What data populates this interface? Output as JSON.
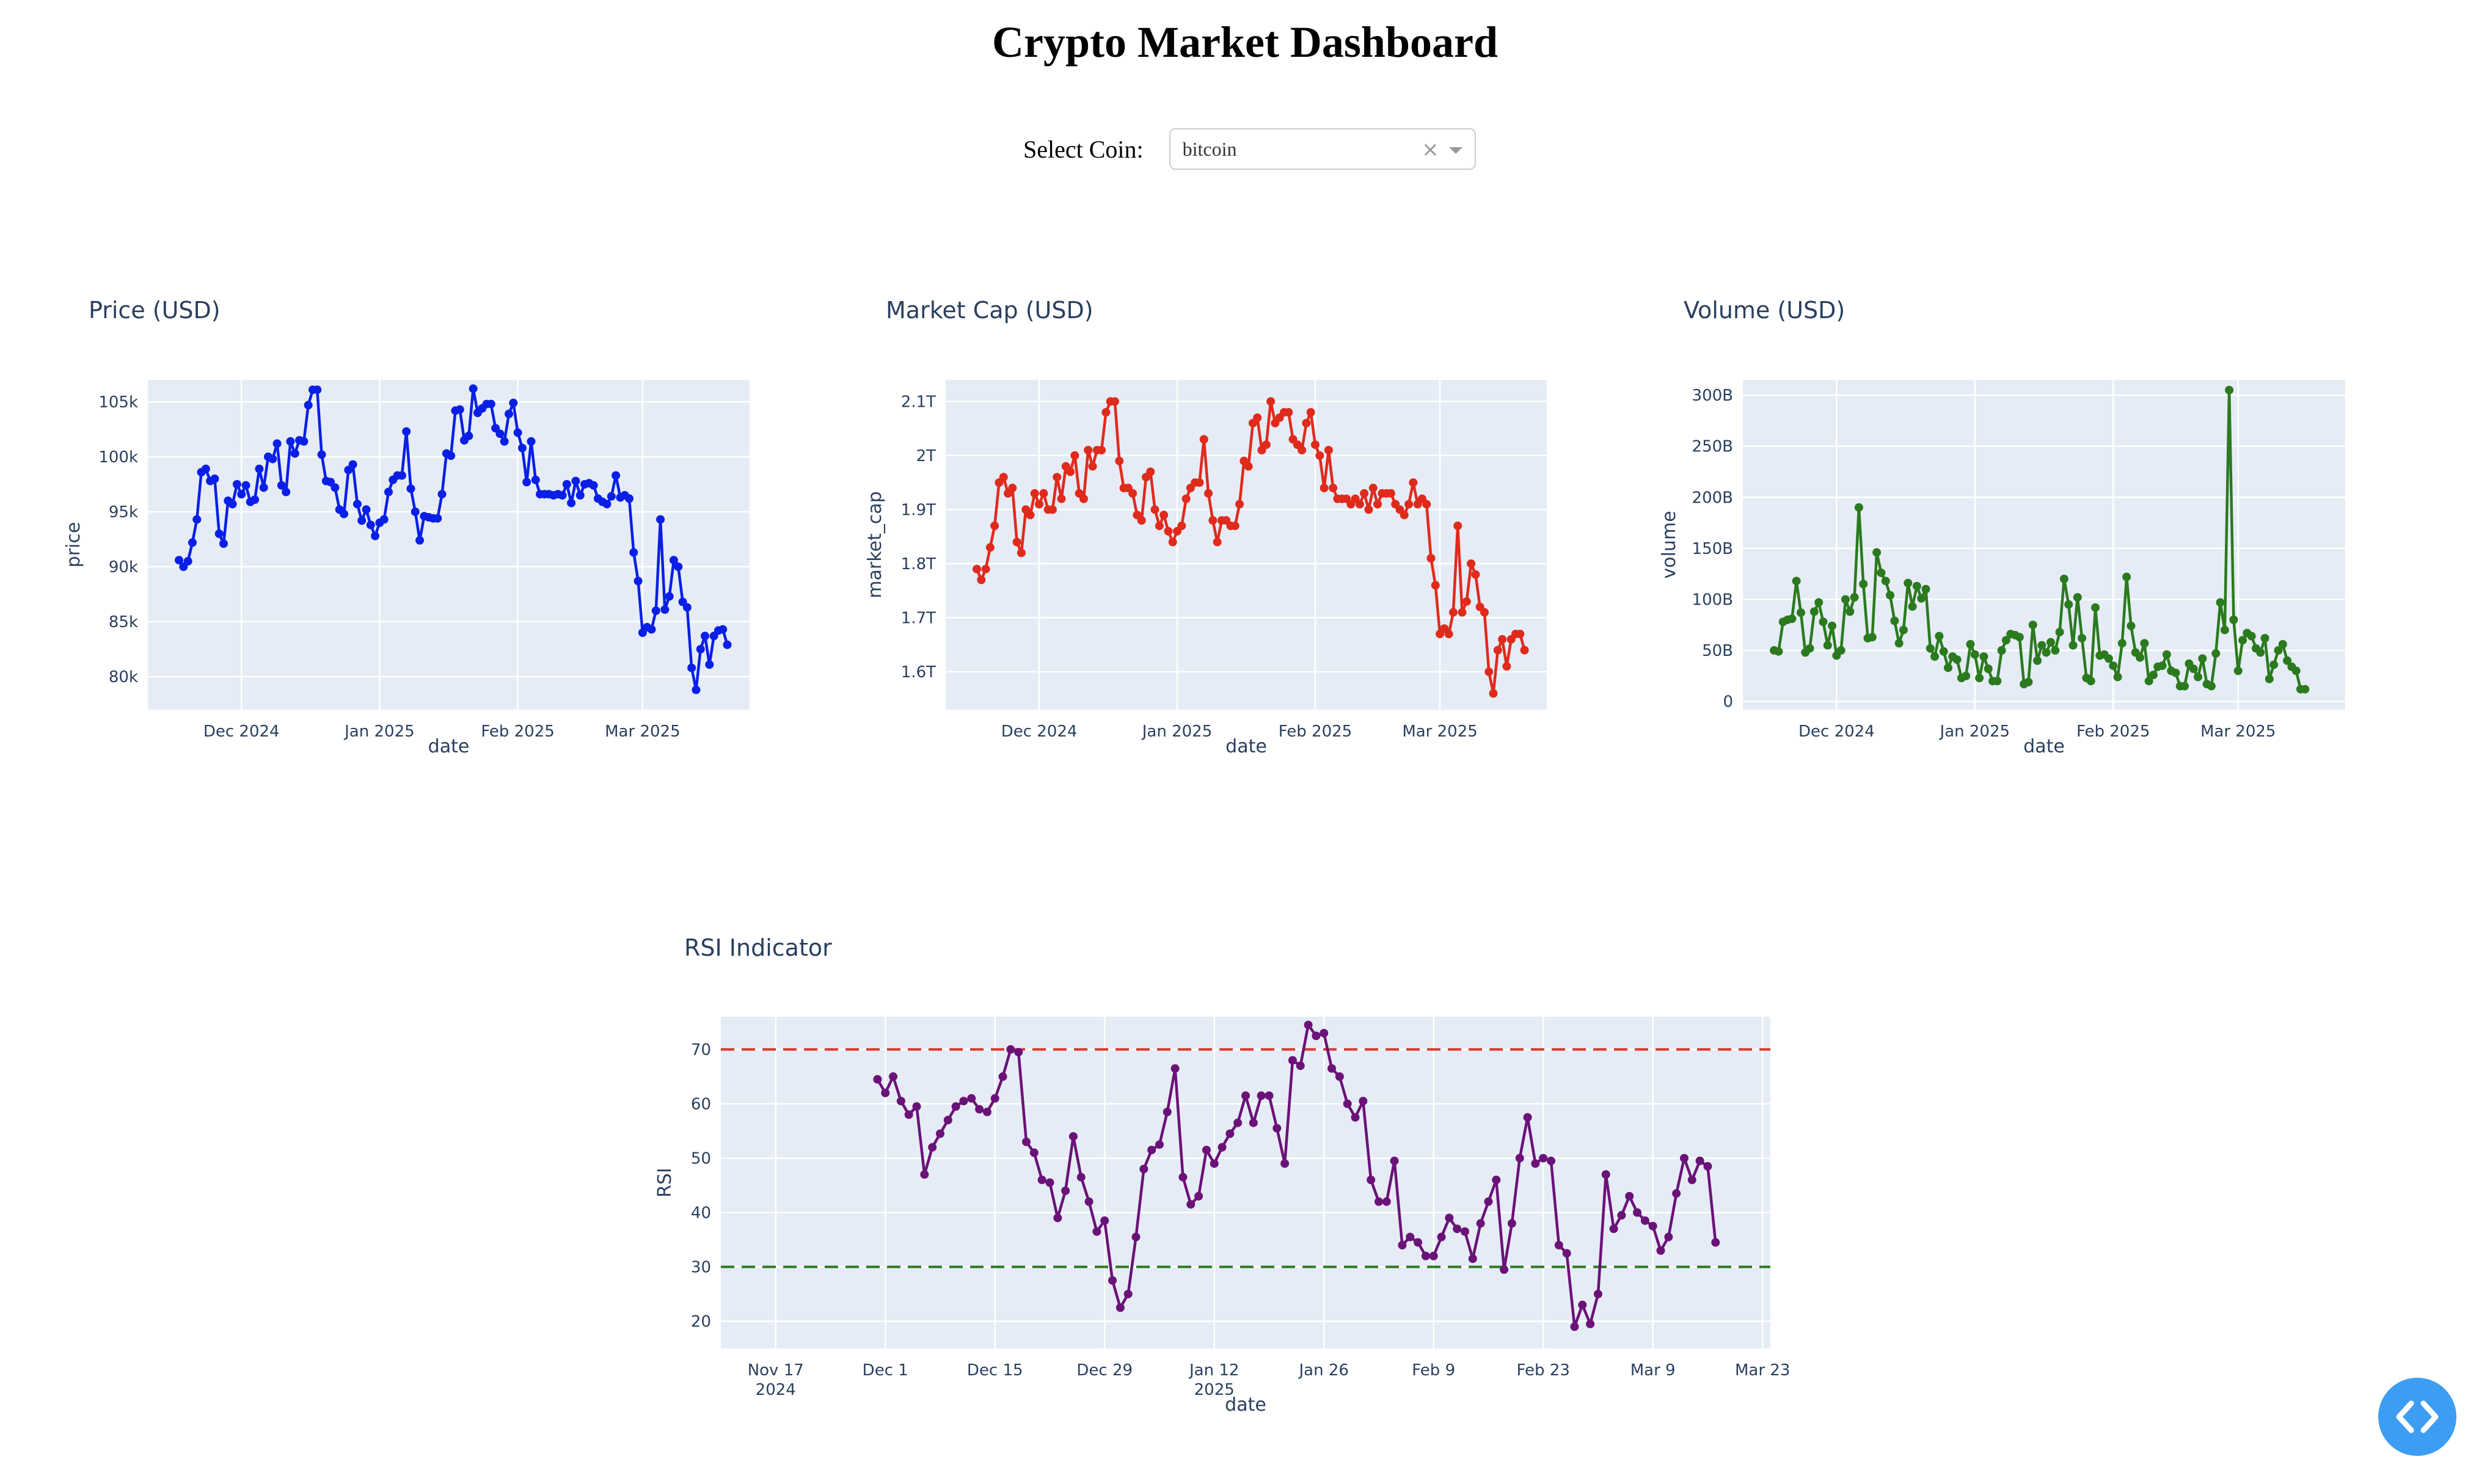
{
  "header": {
    "title": "Crypto Market Dashboard"
  },
  "selector": {
    "label": "Select Coin:",
    "value": "bitcoin",
    "clear_symbol": "×"
  },
  "icons": {
    "clear": "close-icon",
    "dropdown": "chevron-down-icon",
    "fab": "code-brackets-icon"
  },
  "chart_data": [
    {
      "id": "price",
      "type": "line",
      "title": "Price (USD)",
      "xlabel": "date",
      "ylabel": "price",
      "color": "#0a1fe6",
      "xlim": [
        "2024-11-10",
        "2025-03-25"
      ],
      "ylim": [
        77000,
        107000
      ],
      "grid": true,
      "x_ticks": [
        {
          "date": "2024-12-01",
          "label": "Dec 2024"
        },
        {
          "date": "2025-01-01",
          "label": "Jan 2025"
        },
        {
          "date": "2025-02-01",
          "label": "Feb 2025"
        },
        {
          "date": "2025-03-01",
          "label": "Mar 2025"
        }
      ],
      "y_ticks": [
        {
          "value": 80000,
          "label": "80k"
        },
        {
          "value": 85000,
          "label": "85k"
        },
        {
          "value": 90000,
          "label": "90k"
        },
        {
          "value": 95000,
          "label": "95k"
        },
        {
          "value": 100000,
          "label": "100k"
        },
        {
          "value": 105000,
          "label": "105k"
        }
      ],
      "start_date": "2024-11-17",
      "values": [
        90600,
        90000,
        90500,
        92200,
        94300,
        98600,
        98900,
        97800,
        98000,
        93000,
        92100,
        96000,
        95700,
        97500,
        96600,
        97400,
        95900,
        96100,
        98900,
        97200,
        100000,
        99800,
        101200,
        97400,
        96800,
        101400,
        100300,
        101500,
        101400,
        104700,
        106100,
        106100,
        100200,
        97800,
        97700,
        97200,
        95200,
        94800,
        98800,
        99300,
        95700,
        94200,
        95200,
        93800,
        92800,
        94000,
        94300,
        96800,
        97900,
        98300,
        98300,
        102300,
        97100,
        95000,
        92400,
        94600,
        94500,
        94400,
        94400,
        96600,
        100300,
        100100,
        104200,
        104300,
        101500,
        101900,
        106200,
        104000,
        104400,
        104800,
        104800,
        102600,
        102100,
        101400,
        103900,
        104900,
        102200,
        100800,
        97700,
        101400,
        97900,
        96600,
        96600,
        96600,
        96500,
        96600,
        96500,
        97500,
        95800,
        97800,
        96500,
        97500,
        97600,
        97400,
        96200,
        95900,
        95700,
        96400,
        98300,
        96300,
        96500,
        96200,
        91300,
        88700,
        84000,
        84500,
        84300,
        86000,
        94300,
        86100,
        87300,
        90600,
        90000,
        86800,
        86300,
        80800,
        78800,
        82500,
        83700,
        81100,
        83700,
        84200,
        84300,
        82900
      ]
    },
    {
      "id": "market_cap",
      "type": "line",
      "title": "Market Cap (USD)",
      "xlabel": "date",
      "ylabel": "market_cap",
      "color": "#e02a1c",
      "xlim": [
        "2024-11-10",
        "2025-03-25"
      ],
      "ylim": [
        1530000000000.0,
        2140000000000.0
      ],
      "grid": true,
      "x_ticks": [
        {
          "date": "2024-12-01",
          "label": "Dec 2024"
        },
        {
          "date": "2025-01-01",
          "label": "Jan 2025"
        },
        {
          "date": "2025-02-01",
          "label": "Feb 2025"
        },
        {
          "date": "2025-03-01",
          "label": "Mar 2025"
        }
      ],
      "y_ticks": [
        {
          "value": 1600000000000.0,
          "label": "1.6T"
        },
        {
          "value": 1700000000000.0,
          "label": "1.7T"
        },
        {
          "value": 1800000000000.0,
          "label": "1.8T"
        },
        {
          "value": 1900000000000.0,
          "label": "1.9T"
        },
        {
          "value": 2000000000000.0,
          "label": "2T"
        },
        {
          "value": 2100000000000.0,
          "label": "2.1T"
        }
      ],
      "start_date": "2024-11-17",
      "values": [
        1790000000000.0,
        1770000000000.0,
        1790000000000.0,
        1830000000000.0,
        1870000000000.0,
        1950000000000.0,
        1960000000000.0,
        1930000000000.0,
        1940000000000.0,
        1840000000000.0,
        1820000000000.0,
        1900000000000.0,
        1890000000000.0,
        1930000000000.0,
        1910000000000.0,
        1930000000000.0,
        1900000000000.0,
        1900000000000.0,
        1960000000000.0,
        1920000000000.0,
        1980000000000.0,
        1970000000000.0,
        2000000000000.0,
        1930000000000.0,
        1920000000000.0,
        2010000000000.0,
        1980000000000.0,
        2010000000000.0,
        2010000000000.0,
        2080000000000.0,
        2100000000000.0,
        2100000000000.0,
        1990000000000.0,
        1940000000000.0,
        1940000000000.0,
        1930000000000.0,
        1890000000000.0,
        1880000000000.0,
        1960000000000.0,
        1970000000000.0,
        1900000000000.0,
        1870000000000.0,
        1890000000000.0,
        1860000000000.0,
        1840000000000.0,
        1860000000000.0,
        1870000000000.0,
        1920000000000.0,
        1940000000000.0,
        1950000000000.0,
        1950000000000.0,
        2030000000000.0,
        1930000000000.0,
        1880000000000.0,
        1840000000000.0,
        1880000000000.0,
        1880000000000.0,
        1870000000000.0,
        1870000000000.0,
        1910000000000.0,
        1990000000000.0,
        1980000000000.0,
        2060000000000.0,
        2070000000000.0,
        2010000000000.0,
        2020000000000.0,
        2100000000000.0,
        2060000000000.0,
        2070000000000.0,
        2080000000000.0,
        2080000000000.0,
        2030000000000.0,
        2020000000000.0,
        2010000000000.0,
        2060000000000.0,
        2080000000000.0,
        2020000000000.0,
        2000000000000.0,
        1940000000000.0,
        2010000000000.0,
        1940000000000.0,
        1920000000000.0,
        1920000000000.0,
        1920000000000.0,
        1910000000000.0,
        1920000000000.0,
        1910000000000.0,
        1930000000000.0,
        1900000000000.0,
        1940000000000.0,
        1910000000000.0,
        1930000000000.0,
        1930000000000.0,
        1930000000000.0,
        1910000000000.0,
        1900000000000.0,
        1890000000000.0,
        1910000000000.0,
        1950000000000.0,
        1910000000000.0,
        1920000000000.0,
        1910000000000.0,
        1810000000000.0,
        1760000000000.0,
        1670000000000.0,
        1680000000000.0,
        1670000000000.0,
        1710000000000.0,
        1870000000000.0,
        1710000000000.0,
        1730000000000.0,
        1800000000000.0,
        1780000000000.0,
        1720000000000.0,
        1710000000000.0,
        1600000000000.0,
        1560000000000.0,
        1640000000000.0,
        1660000000000.0,
        1610000000000.0,
        1660000000000.0,
        1670000000000.0,
        1670000000000.0,
        1640000000000.0
      ]
    },
    {
      "id": "volume",
      "type": "line",
      "title": "Volume (USD)",
      "xlabel": "date",
      "ylabel": "volume",
      "color": "#2b7a1e",
      "xlim": [
        "2024-11-10",
        "2025-03-25"
      ],
      "ylim": [
        -8000000000.0,
        315000000000.0
      ],
      "grid": true,
      "x_ticks": [
        {
          "date": "2024-12-01",
          "label": "Dec 2024"
        },
        {
          "date": "2025-01-01",
          "label": "Jan 2025"
        },
        {
          "date": "2025-02-01",
          "label": "Feb 2025"
        },
        {
          "date": "2025-03-01",
          "label": "Mar 2025"
        }
      ],
      "y_ticks": [
        {
          "value": 0,
          "label": "0"
        },
        {
          "value": 50000000000.0,
          "label": "50B"
        },
        {
          "value": 100000000000.0,
          "label": "100B"
        },
        {
          "value": 150000000000.0,
          "label": "150B"
        },
        {
          "value": 200000000000.0,
          "label": "200B"
        },
        {
          "value": 250000000000.0,
          "label": "250B"
        },
        {
          "value": 300000000000.0,
          "label": "300B"
        }
      ],
      "start_date": "2024-11-17",
      "values": [
        50000000000.0,
        49000000000.0,
        78000000000.0,
        80000000000.0,
        81000000000.0,
        118000000000.0,
        87000000000.0,
        48000000000.0,
        52000000000.0,
        88000000000.0,
        97000000000.0,
        78000000000.0,
        55000000000.0,
        74000000000.0,
        45000000000.0,
        50000000000.0,
        100000000000.0,
        88000000000.0,
        102000000000.0,
        190000000000.0,
        115000000000.0,
        62000000000.0,
        63000000000.0,
        146000000000.0,
        126000000000.0,
        118000000000.0,
        104000000000.0,
        79000000000.0,
        57000000000.0,
        70000000000.0,
        116000000000.0,
        93000000000.0,
        113000000000.0,
        101000000000.0,
        110000000000.0,
        52000000000.0,
        44000000000.0,
        64000000000.0,
        49000000000.0,
        33000000000.0,
        44000000000.0,
        41000000000.0,
        23000000000.0,
        25000000000.0,
        56000000000.0,
        46000000000.0,
        23000000000.0,
        44000000000.0,
        32000000000.0,
        20000000000.0,
        20000000000.0,
        50000000000.0,
        60000000000.0,
        66000000000.0,
        65000000000.0,
        63000000000.0,
        17000000000.0,
        19000000000.0,
        75000000000.0,
        40000000000.0,
        55000000000.0,
        48000000000.0,
        58000000000.0,
        50000000000.0,
        68000000000.0,
        120000000000.0,
        95000000000.0,
        55000000000.0,
        102000000000.0,
        62000000000.0,
        23000000000.0,
        20000000000.0,
        92000000000.0,
        45000000000.0,
        46000000000.0,
        42000000000.0,
        35000000000.0,
        24000000000.0,
        57000000000.0,
        122000000000.0,
        74000000000.0,
        48000000000.0,
        43000000000.0,
        57000000000.0,
        20000000000.0,
        26000000000.0,
        34000000000.0,
        35000000000.0,
        46000000000.0,
        30000000000.0,
        28000000000.0,
        15000000000.0,
        15000000000.0,
        37000000000.0,
        32000000000.0,
        24000000000.0,
        42000000000.0,
        17000000000.0,
        15000000000.0,
        47000000000.0,
        97000000000.0,
        70000000000.0,
        305000000000.0,
        80000000000.0,
        30000000000.0,
        60000000000.0,
        67000000000.0,
        64000000000.0,
        52000000000.0,
        48000000000.0,
        62000000000.0,
        22000000000.0,
        36000000000.0,
        50000000000.0,
        56000000000.0,
        40000000000.0,
        34000000000.0,
        30000000000.0,
        12000000000.0,
        12000000000.0
      ]
    },
    {
      "id": "rsi",
      "type": "line",
      "title": "RSI Indicator",
      "xlabel": "date",
      "ylabel": "RSI",
      "color": "#6b1278",
      "xlim": [
        "2024-11-10",
        "2025-03-24"
      ],
      "ylim": [
        15,
        76
      ],
      "grid": true,
      "x_ticks": [
        {
          "date": "2024-11-17",
          "label": "Nov 17",
          "label2": "2024"
        },
        {
          "date": "2024-12-01",
          "label": "Dec 1"
        },
        {
          "date": "2024-12-15",
          "label": "Dec 15"
        },
        {
          "date": "2024-12-29",
          "label": "Dec 29"
        },
        {
          "date": "2025-01-12",
          "label": "Jan 12",
          "label2": "2025"
        },
        {
          "date": "2025-01-26",
          "label": "Jan 26"
        },
        {
          "date": "2025-02-09",
          "label": "Feb 9"
        },
        {
          "date": "2025-02-23",
          "label": "Feb 23"
        },
        {
          "date": "2025-03-09",
          "label": "Mar 9"
        },
        {
          "date": "2025-03-23",
          "label": "Mar 23"
        }
      ],
      "y_ticks": [
        {
          "value": 20,
          "label": "20"
        },
        {
          "value": 30,
          "label": "30"
        },
        {
          "value": 40,
          "label": "40"
        },
        {
          "value": 50,
          "label": "50"
        },
        {
          "value": 60,
          "label": "60"
        },
        {
          "value": 70,
          "label": "70"
        }
      ],
      "reference_lines": [
        {
          "value": 70,
          "color": "#e0332b"
        },
        {
          "value": 30,
          "color": "#2b7a1e"
        }
      ],
      "start_date": "2024-11-30",
      "values": [
        64.5,
        62,
        65,
        60.5,
        58,
        59.5,
        47,
        52,
        54.5,
        57,
        59.5,
        60.5,
        61,
        59,
        58.5,
        61,
        65,
        70,
        69.5,
        53,
        51,
        46,
        45.5,
        39,
        44,
        54,
        46.5,
        42,
        36.5,
        38.5,
        27.5,
        22.5,
        25,
        35.5,
        48,
        51.5,
        52.5,
        58.5,
        66.5,
        46.5,
        41.5,
        43,
        51.5,
        49,
        52,
        54.5,
        56.5,
        61.5,
        56.5,
        61.5,
        61.5,
        55.5,
        49,
        68,
        67,
        74.5,
        72.5,
        73,
        66.5,
        65,
        60,
        57.5,
        60.5,
        46,
        42,
        42,
        49.5,
        34,
        35.5,
        34.5,
        32,
        32,
        35.5,
        39,
        37,
        36.5,
        31.5,
        38,
        42,
        46,
        29.5,
        38,
        50,
        57.5,
        49,
        50,
        49.5,
        34,
        32.5,
        19,
        23,
        19.5,
        25,
        47,
        37,
        39.5,
        43,
        40,
        38.5,
        37.5,
        33,
        35.5,
        43.5,
        50,
        46,
        49.5,
        48.5,
        34.5
      ]
    }
  ]
}
